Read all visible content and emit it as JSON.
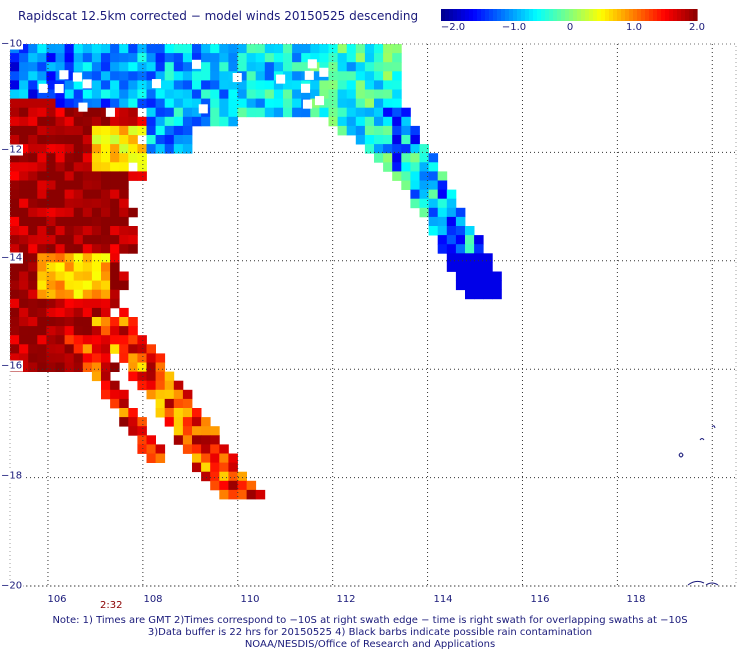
{
  "title": "Rapidscat 12.5km corrected − model winds 20150525 descending",
  "colorbar": {
    "ticks": [
      "−2.0",
      "−1.0",
      "0",
      "1.0",
      "2.0"
    ],
    "tick_values": [
      -2.0,
      -1.0,
      0,
      1.0,
      2.0
    ],
    "range": [
      -2.0,
      2.0
    ],
    "colors": [
      "#00008b",
      "#0000ff",
      "#0080ff",
      "#00ffff",
      "#80ff80",
      "#ffff00",
      "#ff8000",
      "#ff0000",
      "#8b0000"
    ]
  },
  "axes": {
    "x_ticks": [
      "106",
      "108",
      "110",
      "112",
      "114",
      "116",
      "118"
    ],
    "y_ticks": [
      "−10",
      "−12",
      "−14",
      "−16",
      "−18",
      "−20"
    ]
  },
  "time_label": "2:32",
  "notes": [
    "Note: 1) Times are GMT 2)Times correspond to −10S at right swath edge − time is right swath for overlapping swaths at −10S",
    "3)Data buffer is 22 hrs for 20150525 4) Black barbs indicate possible rain contamination",
    "NOAA/NESDIS/Office of Research and Applications"
  ],
  "chart_data": {
    "type": "heatmap",
    "title": "Rapidscat 12.5km corrected − model winds 20150525 descending",
    "xlabel": "",
    "ylabel": "",
    "xlim": [
      105.2,
      120.5
    ],
    "ylim": [
      -20,
      -10
    ],
    "grid": true,
    "legend": "colorbar top-right",
    "value_range": [
      -2.0,
      2.0
    ],
    "regions": [
      {
        "area": "northern arc (lon 105.2-113, lat -10 to -11.8)",
        "approx_value": -1.2
      },
      {
        "area": "eastern arm (lon 112.8-114.9, lat -11.2 to -14.6)",
        "approx_value": -0.8
      },
      {
        "area": "western edge (lon 105.2-107.5, lat -11.3 to -16.0)",
        "approx_value": 1.7
      },
      {
        "area": "southern streaks (lon 106-109.8, lat -16 to -18.4)",
        "approx_value": 1.0
      }
    ]
  }
}
